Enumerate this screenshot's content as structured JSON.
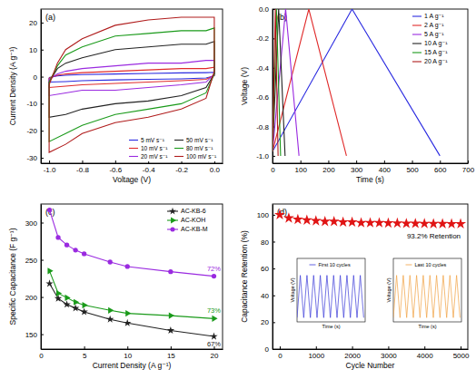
{
  "chart_data": [
    {
      "type": "line",
      "title": "(a)",
      "x_label": "Voltage (V)",
      "y_label": "Current Density (A g⁻¹)",
      "xlim": [
        -1.05,
        0.05
      ],
      "ylim": [
        -32,
        25
      ],
      "xticks": [
        {
          "value": -1,
          "label": "-1.0"
        },
        -0.8,
        -0.6,
        -0.4,
        -0.2,
        {
          "value": 0,
          "label": "0.0"
        }
      ],
      "yticks": [
        -30,
        -20,
        -10,
        0,
        10,
        20
      ],
      "legend": "lower right",
      "x": [
        -1,
        -0.95,
        -0.9,
        -0.8,
        -0.6,
        -0.4,
        -0.2,
        -0.05,
        0,
        0,
        -0.05,
        -0.2,
        -0.4,
        -0.6,
        -0.8,
        -0.9,
        -1,
        -1
      ],
      "series": [
        {
          "name": "5 mV s⁻¹",
          "color": "#2a2ae0",
          "values": [
            -0.3,
            0.3,
            0.5,
            0.8,
            1,
            1.2,
            1.4,
            1.5,
            1.6,
            0.3,
            -0.5,
            -0.8,
            -1,
            -1.2,
            -1.5,
            -1.8,
            -2,
            -0.3
          ]
        },
        {
          "name": "10 mV s⁻¹",
          "color": "#e02a2a",
          "values": [
            -0.5,
            0.5,
            1,
            1.5,
            2,
            2.5,
            3,
            3,
            3.5,
            0.5,
            -1,
            -1.5,
            -2,
            -2.5,
            -3,
            -3.5,
            -4,
            -0.5
          ]
        },
        {
          "name": "20 mV s⁻¹",
          "color": "#9a2ae0",
          "values": [
            -1,
            1,
            2,
            3,
            4,
            5,
            5,
            6,
            6,
            1,
            -2,
            -3,
            -4,
            -5,
            -5,
            -6,
            -7,
            -1
          ]
        },
        {
          "name": "50 mV s⁻¹",
          "color": "#222222",
          "values": [
            -2,
            3,
            5,
            7,
            10,
            11,
            12,
            12,
            13,
            1,
            -4,
            -7,
            -9,
            -10,
            -12,
            -14,
            -15,
            -2
          ]
        },
        {
          "name": "80 mV s⁻¹",
          "color": "#1a9a1a",
          "values": [
            -2,
            4,
            8,
            11,
            15,
            16,
            17,
            17,
            18,
            1,
            -6,
            -10,
            -12,
            -14,
            -18,
            -21,
            -24,
            -2
          ]
        },
        {
          "name": "100 mV s⁻¹",
          "color": "#b01c1c",
          "values": [
            -3,
            5,
            10,
            14,
            19,
            21,
            22,
            22,
            22,
            2,
            -8,
            -12,
            -15,
            -17,
            -21,
            -25,
            -28,
            -3
          ]
        }
      ]
    },
    {
      "type": "line",
      "title": "(b)",
      "x_label": "Time (s)",
      "y_label": "Voltage (V)",
      "xlim": [
        0,
        700
      ],
      "ylim": [
        -1.05,
        0
      ],
      "xticks": [
        0,
        100,
        200,
        300,
        400,
        500,
        600,
        700
      ],
      "yticks": [
        {
          "value": -1,
          "label": "-1.0"
        },
        -0.8,
        -0.6,
        -0.4,
        -0.2,
        {
          "value": 0,
          "label": "0.0"
        }
      ],
      "legend": "upper right",
      "series": [
        {
          "name": "1 A g⁻¹",
          "color": "#2a2ae0",
          "x": [
            0,
            285,
            600
          ],
          "values": [
            -0.97,
            0,
            -1
          ]
        },
        {
          "name": "2 A g⁻¹",
          "color": "#e02a2a",
          "x": [
            0,
            130,
            265
          ],
          "values": [
            -0.97,
            0,
            -1
          ]
        },
        {
          "name": "5 A g⁻¹",
          "color": "#9a2ae0",
          "x": [
            0,
            47,
            95
          ],
          "values": [
            -0.97,
            0,
            -1
          ]
        },
        {
          "name": "10 A g⁻¹",
          "color": "#222222",
          "x": [
            0,
            22,
            45
          ],
          "values": [
            -0.97,
            0,
            -1
          ]
        },
        {
          "name": "15 A g⁻¹",
          "color": "#1a9a1a",
          "x": [
            0,
            14,
            29
          ],
          "values": [
            -0.97,
            0,
            -1
          ]
        },
        {
          "name": "20 A g⁻¹",
          "color": "#b01c1c",
          "x": [
            0,
            10,
            20
          ],
          "values": [
            -0.97,
            0,
            -1
          ]
        }
      ]
    },
    {
      "type": "line",
      "title": "(c)",
      "x_label": "Current Density (A g⁻¹)",
      "y_label": "Specific Capacitance (F g⁻¹)",
      "xlim": [
        0,
        21
      ],
      "ylim": [
        130,
        325
      ],
      "xticks": [
        0,
        5,
        10,
        15,
        20
      ],
      "yticks": [
        150,
        200,
        250,
        300
      ],
      "legend": "upper right",
      "x": [
        1,
        2,
        3,
        4,
        5,
        8,
        10,
        15,
        20
      ],
      "series": [
        {
          "name": "AC-KB-6",
          "color": "#222222",
          "marker": "star",
          "retention_label": "67%",
          "values": [
            218,
            198,
            190,
            185,
            180,
            170,
            165,
            155,
            147
          ]
        },
        {
          "name": "AC-KOH",
          "color": "#1a9a1a",
          "marker": "triangle-right",
          "retention_label": "73%",
          "values": [
            235,
            205,
            199,
            193,
            189,
            182,
            178,
            175,
            171
          ]
        },
        {
          "name": "AC-KB-M",
          "color": "#9a2ae0",
          "marker": "circle",
          "retention_label": "72%",
          "values": [
            317,
            280,
            270,
            263,
            258,
            247,
            241,
            234,
            228
          ]
        }
      ]
    },
    {
      "type": "scatter",
      "title": "(d)",
      "x_label": "Cycle Number",
      "y_label": "Capacitance Retention (%)",
      "xlim": [
        -200,
        5200
      ],
      "ylim": [
        0,
        108
      ],
      "xticks": [
        0,
        1000,
        2000,
        3000,
        4000,
        5000
      ],
      "yticks": [
        0,
        20,
        40,
        60,
        80,
        100
      ],
      "marker": "star",
      "color": "#e01414",
      "annotation": "93.2% Retention",
      "x": [
        0,
        250,
        500,
        750,
        1000,
        1250,
        1500,
        1750,
        2000,
        2250,
        2500,
        2750,
        3000,
        3250,
        3500,
        3750,
        4000,
        4250,
        4500,
        4750,
        5000
      ],
      "values": [
        100,
        97.5,
        96.5,
        96,
        95.5,
        95,
        95,
        94.5,
        94.5,
        94,
        94,
        94,
        93.8,
        93.7,
        93.5,
        93.5,
        93.4,
        93.3,
        93.3,
        93.2,
        93.2
      ]
    },
    {
      "type": "line",
      "x_label": "Time (s)",
      "y_label": "Voltage (V)",
      "tick_labels": false,
      "xlim": [
        0,
        460
      ],
      "ylim": [
        -1.1,
        0.4
      ],
      "legend": "upper center",
      "series": [
        {
          "name": "First 10 cycles",
          "color": "#3a3ad8",
          "x": [
            0,
            22,
            45,
            67,
            90,
            112,
            135,
            157,
            180,
            202,
            225,
            247,
            270,
            292,
            315,
            337,
            360,
            382,
            405,
            427,
            450
          ],
          "values": [
            -1,
            0,
            -1,
            0,
            -1,
            0,
            -1,
            0,
            -1,
            0,
            -1,
            0,
            -1,
            0,
            -1,
            0,
            -1,
            0,
            -1,
            0,
            -1
          ]
        }
      ]
    },
    {
      "type": "line",
      "x_label": "Time (s)",
      "y_label": "Voltage (V)",
      "tick_labels": false,
      "xlim": [
        0,
        460
      ],
      "ylim": [
        -1.1,
        0.4
      ],
      "legend": "upper center",
      "series": [
        {
          "name": "Last 10 cycles",
          "color": "#f0a040",
          "x": [
            0,
            22,
            45,
            67,
            90,
            112,
            135,
            157,
            180,
            202,
            225,
            247,
            270,
            292,
            315,
            337,
            360,
            382,
            405,
            427,
            450
          ],
          "values": [
            -1,
            0,
            -1,
            0,
            -1,
            0,
            -1,
            0,
            -1,
            0,
            -1,
            0,
            -1,
            0,
            -1,
            0,
            -1,
            0,
            -1,
            0,
            -1
          ]
        }
      ]
    }
  ]
}
